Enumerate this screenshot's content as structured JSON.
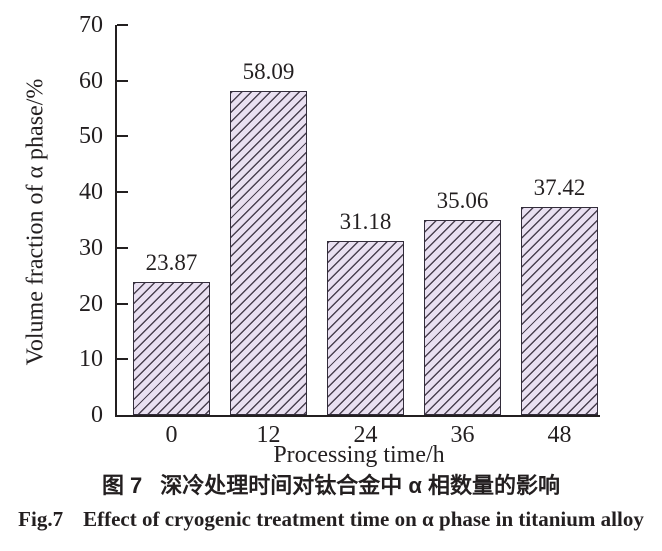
{
  "figure": {
    "captions": {
      "zh": {
        "label": "图 7",
        "text": "深冷处理时间对钛合金中 α 相数量的影响"
      },
      "en": {
        "label": "Fig.7",
        "text": "Effect of cryogenic treatment time on α phase in titanium alloy"
      }
    }
  },
  "chart_data": {
    "type": "bar",
    "categories": [
      "0",
      "12",
      "24",
      "36",
      "48"
    ],
    "values": [
      23.87,
      58.09,
      31.18,
      35.06,
      37.42
    ],
    "value_labels": [
      "23.87",
      "58.09",
      "31.18",
      "35.06",
      "37.42"
    ],
    "title": "",
    "xlabel": "Processing time/h",
    "ylabel": "Volume fraction of α phase/%",
    "ylim": [
      0,
      70
    ],
    "yticks": [
      0,
      10,
      20,
      30,
      40,
      50,
      60,
      70
    ],
    "grid": false,
    "legend": false,
    "hatch": "/",
    "colors": {
      "bar_fill": "#e9e0f1",
      "hatch_line": "#4a4150",
      "bar_border": "#332d3b",
      "axis": "#231f20",
      "text": "#231f20"
    }
  }
}
